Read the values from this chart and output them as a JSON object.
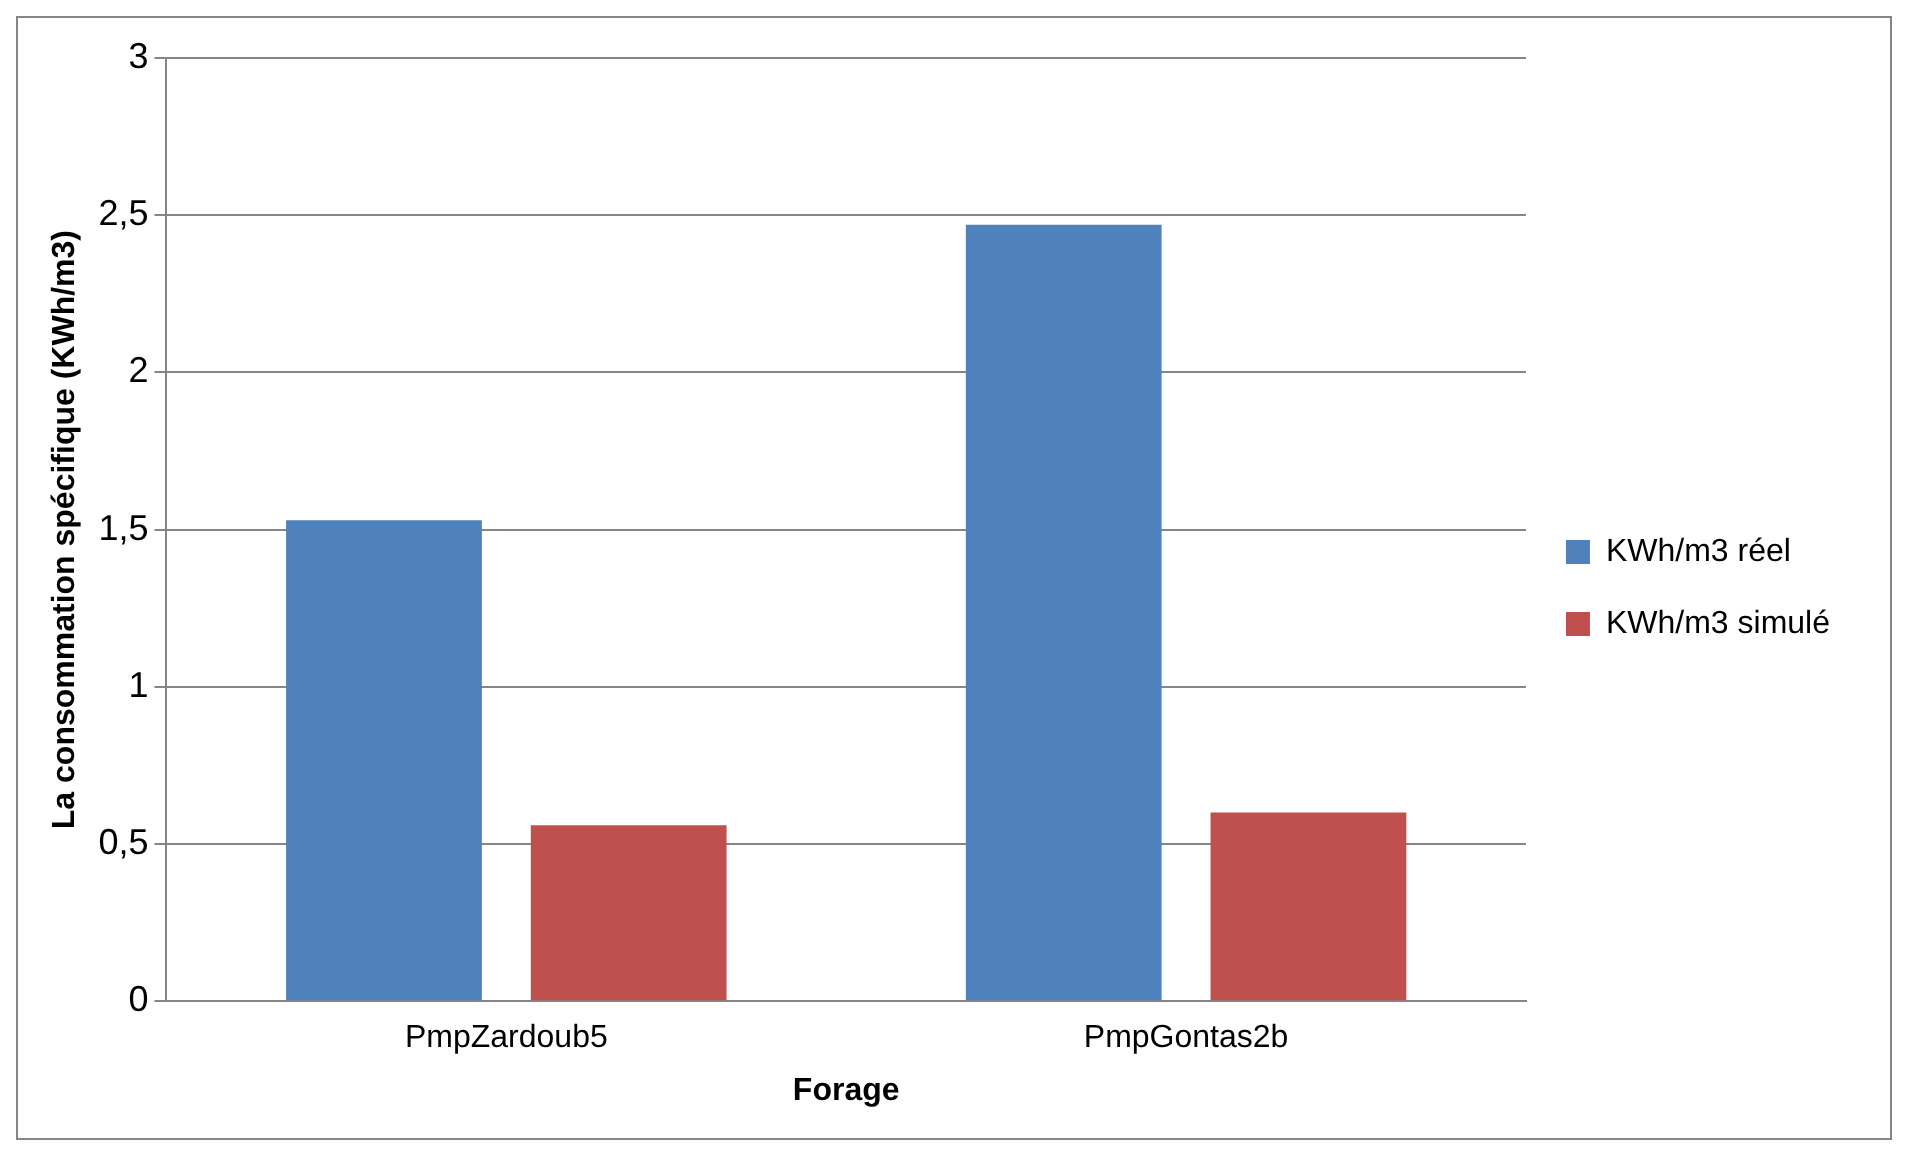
{
  "chart_data": {
    "type": "bar",
    "xlabel": "Forage",
    "ylabel": "La consommation spécifique (KWh/m3)",
    "categories": [
      "PmpZardoub5",
      "PmpGontas2b"
    ],
    "series": [
      {
        "name": "KWh/m3 réel",
        "color": "#4f81bd",
        "values": [
          1.53,
          2.47
        ]
      },
      {
        "name": "KWh/m3 simulé",
        "color": "#c0504d",
        "values": [
          0.56,
          0.6
        ]
      }
    ],
    "ylim": [
      0,
      3
    ],
    "yticks": [
      {
        "value": 0,
        "label": "0"
      },
      {
        "value": 0.5,
        "label": "0,5"
      },
      {
        "value": 1,
        "label": "1"
      },
      {
        "value": 1.5,
        "label": "1,5"
      },
      {
        "value": 2,
        "label": "2"
      },
      {
        "value": 2.5,
        "label": "2,5"
      },
      {
        "value": 3,
        "label": "3"
      }
    ],
    "grid": "y",
    "legend": "right"
  }
}
